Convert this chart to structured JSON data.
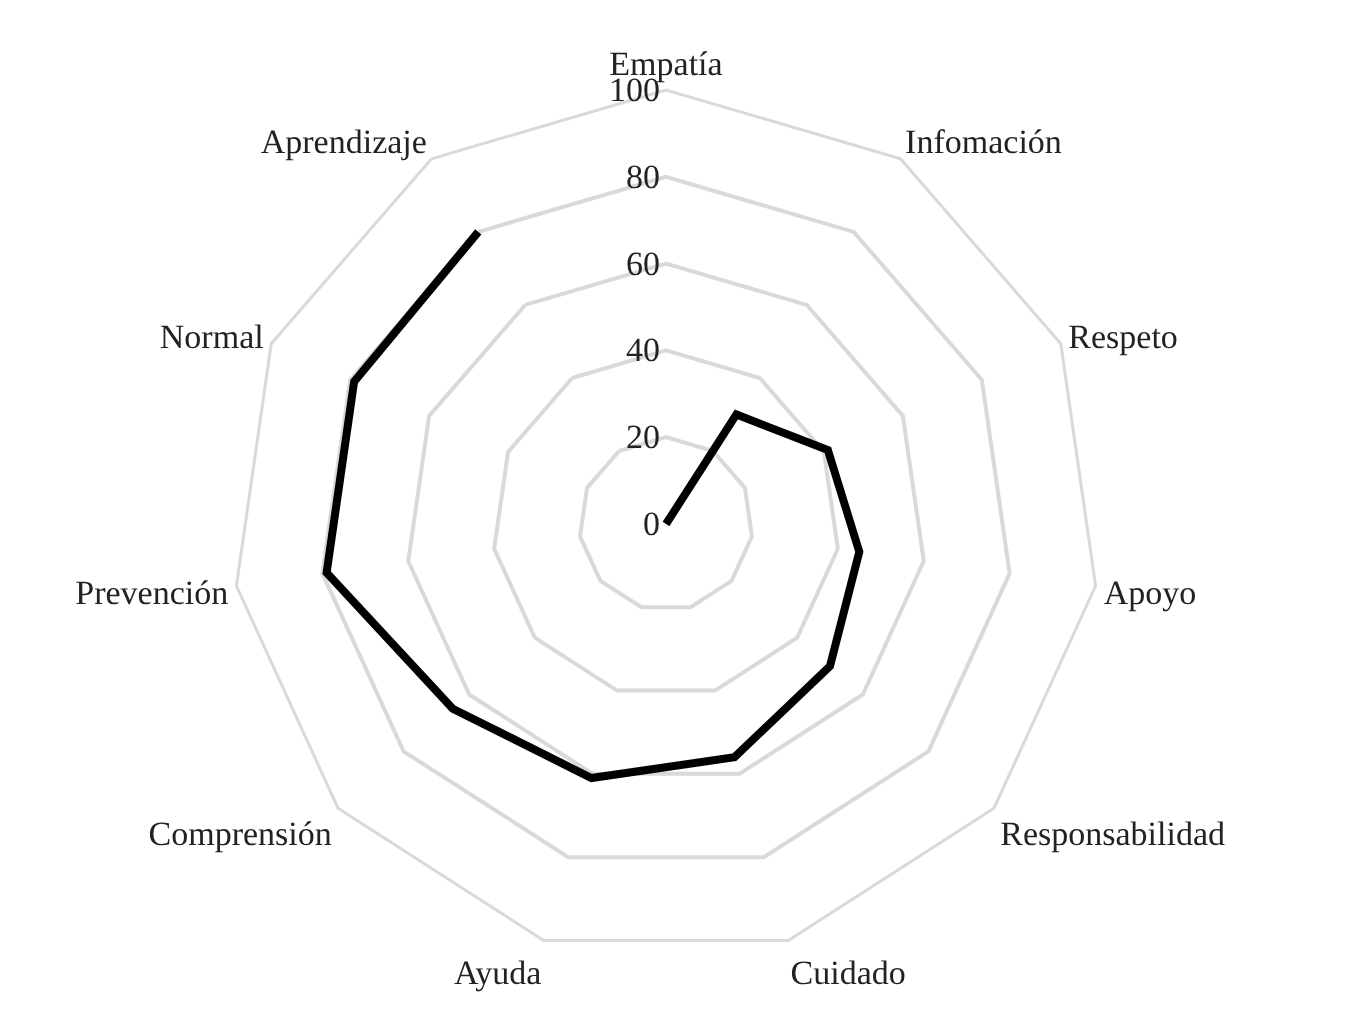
{
  "chart_data": {
    "type": "radar",
    "categories": [
      "Empatía",
      "Infomación",
      "Respeto",
      "Apoyo",
      "Responsabilidad",
      "Cuidado",
      "Ayuda",
      "Comprensión",
      "Prevención",
      "Normal",
      "Aprendizaje"
    ],
    "series": [
      {
        "color": "#000000",
        "values": [
          0,
          30,
          41,
          45,
          50,
          56,
          61,
          65,
          79,
          79,
          80
        ]
      }
    ],
    "ylim": [
      0,
      100
    ],
    "yticks": [
      0,
      20,
      40,
      60,
      80,
      100
    ],
    "grid": true
  }
}
